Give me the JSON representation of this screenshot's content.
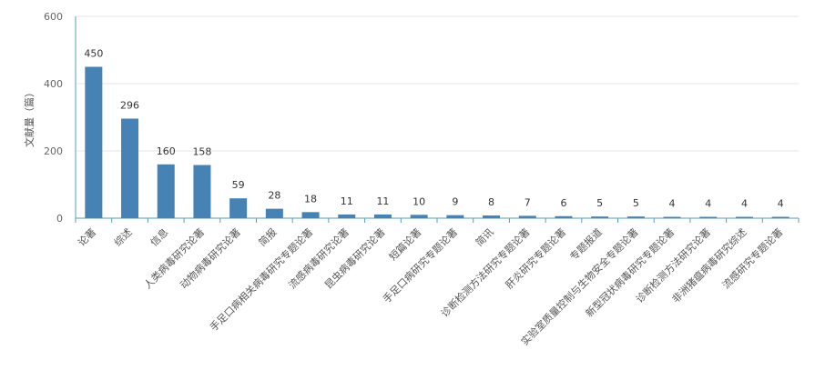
{
  "chart_data": {
    "type": "bar",
    "ylabel": "文献量（篇）",
    "ylim": [
      0,
      600
    ],
    "yticks": [
      0,
      200,
      400,
      600
    ],
    "grid": true,
    "color": "#4682b4",
    "categories": [
      "论著",
      "综述",
      "信息",
      "人类病毒研究论著",
      "动物病毒研究论著",
      "简报",
      "手足口病相关病毒研究专题论著",
      "流感病毒研究论著",
      "昆虫病毒研究论著",
      "短篇论著",
      "手足口病研究专题论著",
      "简讯",
      "诊断检测方法研究专题论著",
      "肝炎研究专题论著",
      "专题报道",
      "实验室质量控制与生物安全专题论著",
      "新型冠状病毒研究专题论著",
      "诊断检测方法研究论著",
      "非洲猪瘟病毒研究综述",
      "流感研究专题论著"
    ],
    "values": [
      450,
      296,
      160,
      158,
      59,
      28,
      18,
      11,
      11,
      10,
      9,
      8,
      7,
      6,
      5,
      5,
      4,
      4,
      4,
      4
    ]
  }
}
